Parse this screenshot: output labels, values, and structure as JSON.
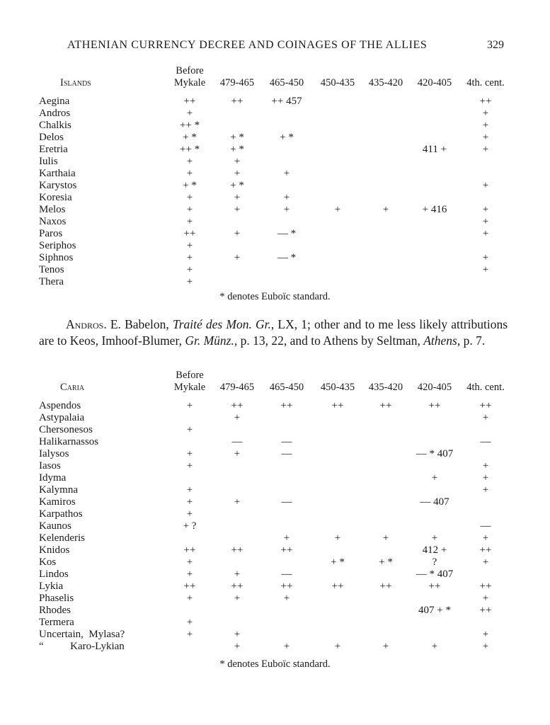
{
  "header": {
    "title": "ATHENIAN CURRENCY DECREE AND COINAGES OF THE ALLIES",
    "page_number": "329"
  },
  "columns": [
    {
      "line1": "Before",
      "line2": "Mykale"
    },
    {
      "line1": "",
      "line2": "479-465"
    },
    {
      "line1": "",
      "line2": "465-450"
    },
    {
      "line1": "",
      "line2": "450-435"
    },
    {
      "line1": "",
      "line2": "435-420"
    },
    {
      "line1": "",
      "line2": "420-405"
    },
    {
      "line1": "",
      "line2": "4th. cent."
    }
  ],
  "tables": [
    {
      "region": "Islands",
      "rows": [
        {
          "name": "Aegina",
          "cells": [
            "++",
            "++",
            "++ 457",
            "",
            "",
            "",
            "++"
          ]
        },
        {
          "name": "Andros",
          "cells": [
            "+",
            "",
            "",
            "",
            "",
            "",
            "+"
          ]
        },
        {
          "name": "Chalkis",
          "cells": [
            "++ *",
            "",
            "",
            "",
            "",
            "",
            "+"
          ]
        },
        {
          "name": "Delos",
          "cells": [
            "+ *",
            "+ *",
            "+ *",
            "",
            "",
            "",
            "+"
          ]
        },
        {
          "name": "Eretria",
          "cells": [
            "++ *",
            "+ *",
            "",
            "",
            "",
            "411 +",
            "+"
          ]
        },
        {
          "name": "Iulis",
          "cells": [
            "+",
            "+",
            "",
            "",
            "",
            "",
            ""
          ]
        },
        {
          "name": "Karthaia",
          "cells": [
            "+",
            "+",
            "+",
            "",
            "",
            "",
            ""
          ]
        },
        {
          "name": "Karystos",
          "cells": [
            "+ *",
            "+ *",
            "",
            "",
            "",
            "",
            "+"
          ]
        },
        {
          "name": "Koresia",
          "cells": [
            "+",
            "+",
            "+",
            "",
            "",
            "",
            ""
          ]
        },
        {
          "name": "Melos",
          "cells": [
            "+",
            "+",
            "+",
            "+",
            "+",
            "+ 416",
            "+"
          ]
        },
        {
          "name": "Naxos",
          "cells": [
            "+",
            "",
            "",
            "",
            "",
            "",
            "+"
          ]
        },
        {
          "name": "Paros",
          "cells": [
            "++",
            "+",
            "— *",
            "",
            "",
            "",
            "+"
          ]
        },
        {
          "name": "Seriphos",
          "cells": [
            "+",
            "",
            "",
            "",
            "",
            "",
            ""
          ]
        },
        {
          "name": "Siphnos",
          "cells": [
            "+",
            "+",
            "— *",
            "",
            "",
            "",
            "+"
          ]
        },
        {
          "name": "Tenos",
          "cells": [
            "+",
            "",
            "",
            "",
            "",
            "",
            "+"
          ]
        },
        {
          "name": "Thera",
          "cells": [
            "+",
            "",
            "",
            "",
            "",
            "",
            ""
          ]
        }
      ],
      "footnote": "* denotes Euboïc standard."
    },
    {
      "region": "Caria",
      "rows": [
        {
          "name": "Aspendos",
          "cells": [
            "+",
            "++",
            "++",
            "++",
            "++",
            "++",
            "++"
          ]
        },
        {
          "name": "Astypalaia",
          "cells": [
            "",
            "+",
            "",
            "",
            "",
            "",
            "+"
          ]
        },
        {
          "name": "Chersonesos",
          "cells": [
            "+",
            "",
            "",
            "",
            "",
            "",
            ""
          ]
        },
        {
          "name": "Halikarnassos",
          "cells": [
            "",
            "—",
            "—",
            "",
            "",
            "",
            "—"
          ]
        },
        {
          "name": "Ialysos",
          "cells": [
            "+",
            "+",
            "—",
            "",
            "",
            "— * 407",
            ""
          ]
        },
        {
          "name": "Iasos",
          "cells": [
            "+",
            "",
            "",
            "",
            "",
            "",
            "+"
          ]
        },
        {
          "name": "Idyma",
          "cells": [
            "",
            "",
            "",
            "",
            "",
            "+",
            "+"
          ]
        },
        {
          "name": "Kalymna",
          "cells": [
            "+",
            "",
            "",
            "",
            "",
            "",
            "+"
          ]
        },
        {
          "name": "Kamiros",
          "cells": [
            "+",
            "+",
            "—",
            "",
            "",
            "— 407",
            ""
          ]
        },
        {
          "name": "Karpathos",
          "cells": [
            "+",
            "",
            "",
            "",
            "",
            "",
            ""
          ]
        },
        {
          "name": "Kaunos",
          "cells": [
            "+ ?",
            "",
            "",
            "",
            "",
            "",
            "—"
          ]
        },
        {
          "name": "Kelenderis",
          "cells": [
            "",
            "",
            "+",
            "+",
            "+",
            "+",
            "+"
          ]
        },
        {
          "name": "Knidos",
          "cells": [
            "++",
            "++",
            "++",
            "",
            "",
            "412 +",
            "++"
          ]
        },
        {
          "name": "Kos",
          "cells": [
            "+",
            "",
            "",
            "+ *",
            "+ *",
            "?",
            "+"
          ]
        },
        {
          "name": "Lindos",
          "cells": [
            "+",
            "+",
            "—",
            "",
            "",
            "— * 407",
            ""
          ]
        },
        {
          "name": "Lykia",
          "cells": [
            "++",
            "++",
            "++",
            "++",
            "++",
            "++",
            "++"
          ]
        },
        {
          "name": "Phaselis",
          "cells": [
            "+",
            "+",
            "+",
            "",
            "",
            "",
            "+"
          ]
        },
        {
          "name": "Rhodes",
          "cells": [
            "",
            "",
            "",
            "",
            "",
            "407 + *",
            "++"
          ]
        },
        {
          "name": "Termera",
          "cells": [
            "+",
            "",
            "",
            "",
            "",
            "",
            ""
          ]
        },
        {
          "name": "Uncertain,  Mylasa?",
          "cells": [
            "+",
            "+",
            "",
            "",
            "",
            "",
            "+"
          ]
        },
        {
          "name": "“          Karo-Lykian",
          "cells": [
            "",
            "+",
            "+",
            "+",
            "+",
            "+",
            "+"
          ]
        }
      ],
      "footnote": "* denotes Euboïc standard."
    }
  ],
  "paragraph": {
    "lead": "Andros.",
    "segments": [
      {
        "text": " E. Babelon, ",
        "italic": false
      },
      {
        "text": "Traité des Mon. Gr.",
        "italic": true
      },
      {
        "text": ", LX, 1; other and to me less likely attributions are to Keos, Imhoof-Blumer, ",
        "italic": false
      },
      {
        "text": "Gr. Münz.",
        "italic": true
      },
      {
        "text": ", p. 13, 22, and to Athens by Seltman, ",
        "italic": false
      },
      {
        "text": "Athens",
        "italic": true
      },
      {
        "text": ", p. 7.",
        "italic": false
      }
    ]
  }
}
